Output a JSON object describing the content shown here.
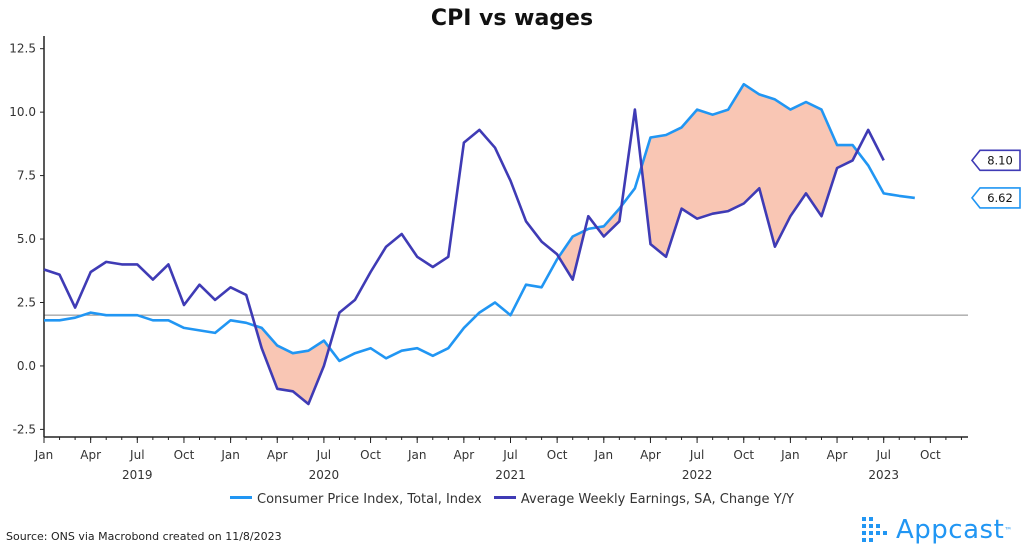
{
  "title": "CPI vs wages",
  "source": "Source: ONS via Macrobond created on 11/8/2023",
  "brand": {
    "name": "Appcast",
    "color": "#2196f3"
  },
  "chart_data": {
    "type": "line",
    "title": "CPI vs wages",
    "y_ticks": [
      "12.5",
      "10.0",
      "7.5",
      "5.0",
      "2.5",
      "0.0",
      "-2.5"
    ],
    "y_tick_values": [
      12.5,
      10,
      7.5,
      5,
      2.5,
      0,
      -2.5
    ],
    "ylim": [
      -2.8,
      13.0
    ],
    "reference_line": 2.0,
    "month_ticks": [
      "Jan",
      "Apr",
      "Jul",
      "Oct",
      "Jan",
      "Apr",
      "Jul",
      "Oct",
      "Jan",
      "Apr",
      "Jul",
      "Oct",
      "Jan",
      "Apr",
      "Jul",
      "Oct",
      "Jan",
      "Apr",
      "Jul",
      "Oct"
    ],
    "month_tick_positions": [
      "2019-01",
      "2019-04",
      "2019-07",
      "2019-10",
      "2020-01",
      "2020-04",
      "2020-07",
      "2020-10",
      "2021-01",
      "2021-04",
      "2021-07",
      "2021-10",
      "2022-01",
      "2022-04",
      "2022-07",
      "2022-10",
      "2023-01",
      "2023-04",
      "2023-07",
      "2023-10"
    ],
    "year_labels": [
      "2019",
      "2020",
      "2021",
      "2022",
      "2023"
    ],
    "year_label_positions": [
      "2019-07",
      "2020-07",
      "2021-07",
      "2022-07",
      "2023-07"
    ],
    "grid": false,
    "legend_position": "bottom",
    "shading": "area between series where wages are below CPI",
    "shade_color": "#f9c6b4",
    "series": [
      {
        "name": "Consumer Price Index, Total, Index",
        "color": "#2196f3",
        "start": "2019-01",
        "values": [
          1.8,
          1.8,
          1.9,
          2.1,
          2.0,
          2.0,
          2.0,
          1.8,
          1.8,
          1.5,
          1.4,
          1.3,
          1.8,
          1.7,
          1.5,
          0.8,
          0.5,
          0.6,
          1.0,
          0.2,
          0.5,
          0.7,
          0.3,
          0.6,
          0.7,
          0.4,
          0.7,
          1.5,
          2.1,
          2.5,
          2.0,
          3.2,
          3.1,
          4.2,
          5.1,
          5.4,
          5.5,
          6.2,
          7.0,
          9.0,
          9.1,
          9.4,
          10.1,
          9.9,
          10.1,
          11.1,
          10.7,
          10.5,
          10.1,
          10.4,
          10.1,
          8.7,
          8.7,
          7.9,
          6.8,
          6.7,
          6.62
        ],
        "last_label": "6.62"
      },
      {
        "name": "Average Weekly Earnings, SA, Change Y/Y",
        "color": "#3f3bb5",
        "start": "2019-01",
        "values": [
          3.8,
          3.6,
          2.3,
          3.7,
          4.1,
          4.0,
          4.0,
          3.4,
          4.0,
          2.4,
          3.2,
          2.6,
          3.1,
          2.8,
          0.7,
          -0.9,
          -1.0,
          -1.5,
          0.0,
          2.1,
          2.6,
          3.7,
          4.7,
          5.2,
          4.3,
          3.9,
          4.3,
          8.8,
          9.3,
          8.6,
          7.3,
          5.7,
          4.9,
          4.4,
          3.4,
          5.9,
          5.1,
          5.7,
          10.1,
          4.8,
          4.3,
          6.2,
          5.8,
          6.0,
          6.1,
          6.4,
          7.0,
          4.7,
          5.9,
          6.8,
          5.9,
          7.8,
          8.1,
          9.3,
          8.1
        ],
        "last_label": "8.10"
      }
    ]
  }
}
